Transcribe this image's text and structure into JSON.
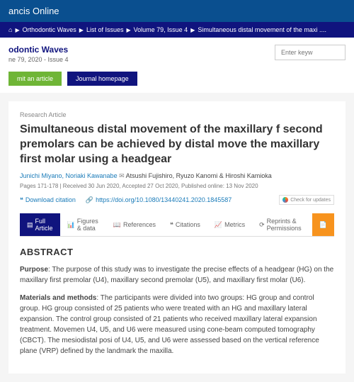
{
  "banner": {
    "site": "ancis Online"
  },
  "breadcrumbs": {
    "items": [
      "Orthodontic Waves",
      "List of Issues",
      "Volume 79, Issue 4",
      "Simultaneous distal movement of the maxi ...."
    ]
  },
  "journal": {
    "name": "odontic Waves",
    "issue": "ne 79, 2020 - Issue 4",
    "search_placeholder": "Enter keyw"
  },
  "actions": {
    "submit": "mit an article",
    "homepage": "Journal homepage"
  },
  "article": {
    "type": "Research Article",
    "title": "Simultaneous distal movement of the maxillary f second premolars can be achieved by distal move the maxillary first molar using a headgear",
    "authors_primary": "Junichi Miyano, Noriaki Kawanabe",
    "authors_secondary": "Atsushi Fujishiro, Ryuzo Kanomi & Hiroshi Kamioka",
    "meta": "Pages 171-178 | Received 30 Jun 2020, Accepted 27 Oct 2020, Published online: 13 Nov 2020",
    "download_citation": "Download citation",
    "doi": "https://doi.org/10.1080/13440241.2020.1845587",
    "check_updates": "Check for updates"
  },
  "tabs": {
    "full_article": "Full Article",
    "figures": "Figures & data",
    "references": "References",
    "citations": "Citations",
    "metrics": "Metrics",
    "reprints": "Reprints & Permissions",
    "pdf": ""
  },
  "abstract": {
    "heading": "ABSTRACT",
    "purpose_label": "Purpose",
    "purpose_text": ": The purpose of this study was to investigate the precise effects of a headgear (HG) on the maxillary first premolar (U4), maxillary second premolar (U5), and maxillary first molar (U6).",
    "methods_label": "Materials and methods",
    "methods_text": ": The participants were divided into two groups: HG group and control group. HG group consisted of 25 patients who were treated with an HG and maxillary lateral expansion. The control group consisted of 21 patients who received maxillary lateral expansion treatment. Movemen U4, U5, and U6 were measured using cone-beam computed tomography (CBCT). The mesiodistal posi of U4, U5, and U6 were assessed based on the vertical reference plane (VRP) defined by the landmark the maxilla."
  },
  "colors": {
    "banner_bg": "#0a4f8f",
    "breadcrumb_bg": "#10147e",
    "link": "#1a7bb9",
    "green": "#6fb536",
    "orange": "#f7931e"
  }
}
